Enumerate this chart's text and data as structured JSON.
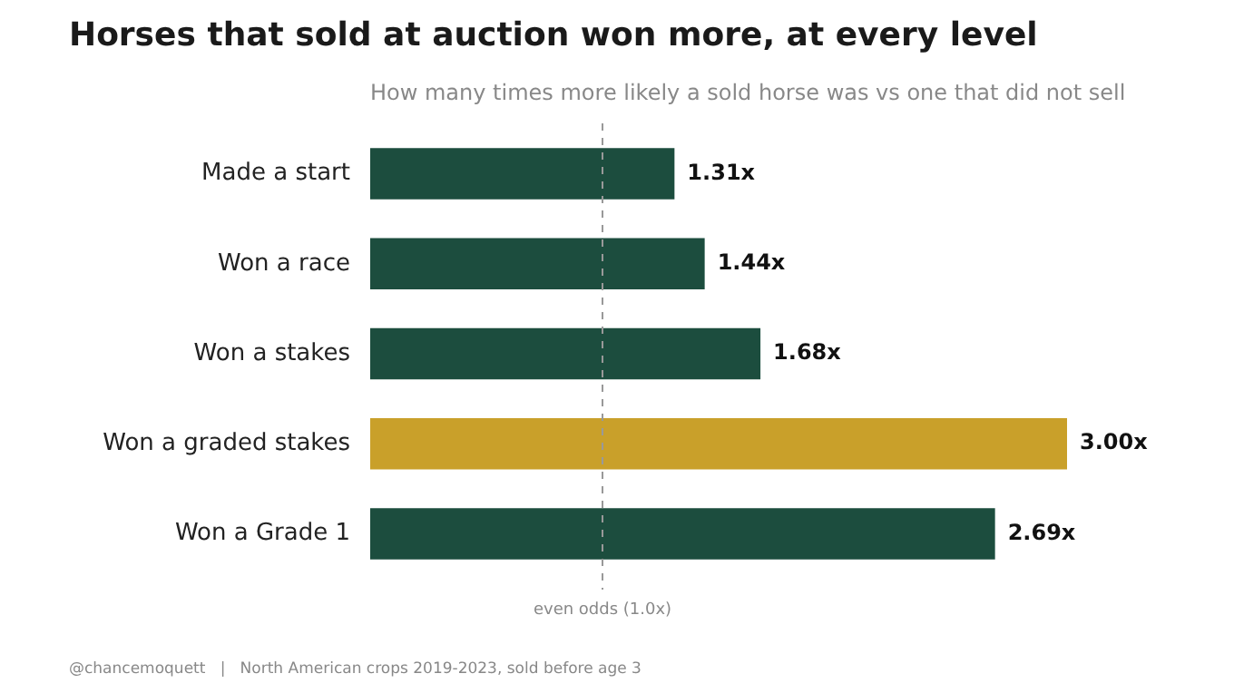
{
  "chart_data": {
    "type": "bar",
    "orientation": "horizontal",
    "title": "Horses that sold at auction won more, at every level",
    "subtitle": "How many times more likely a sold horse was vs one that did not sell",
    "categories": [
      "Made a start",
      "Won a race",
      "Won a stakes",
      "Won a graded stakes",
      "Won a Grade 1"
    ],
    "values": [
      1.31,
      1.44,
      1.68,
      3.0,
      2.69
    ],
    "colors": [
      "#1c4d3e",
      "#1c4d3e",
      "#1c4d3e",
      "#c9a02a",
      "#1c4d3e"
    ],
    "value_labels": [
      "1.31x",
      "1.44x",
      "1.68x",
      "3.00x",
      "2.69x"
    ],
    "ref_lines": [
      {
        "axis": "x",
        "value": 1.0,
        "label": "even odds (1.0x)",
        "color": "#999999",
        "line_style": "dashed"
      }
    ],
    "annotations": [
      "@chancemoquett   |   North American crops 2019-2023, sold before age 3"
    ],
    "tick_labels": "y",
    "grid": false,
    "legend": false
  }
}
